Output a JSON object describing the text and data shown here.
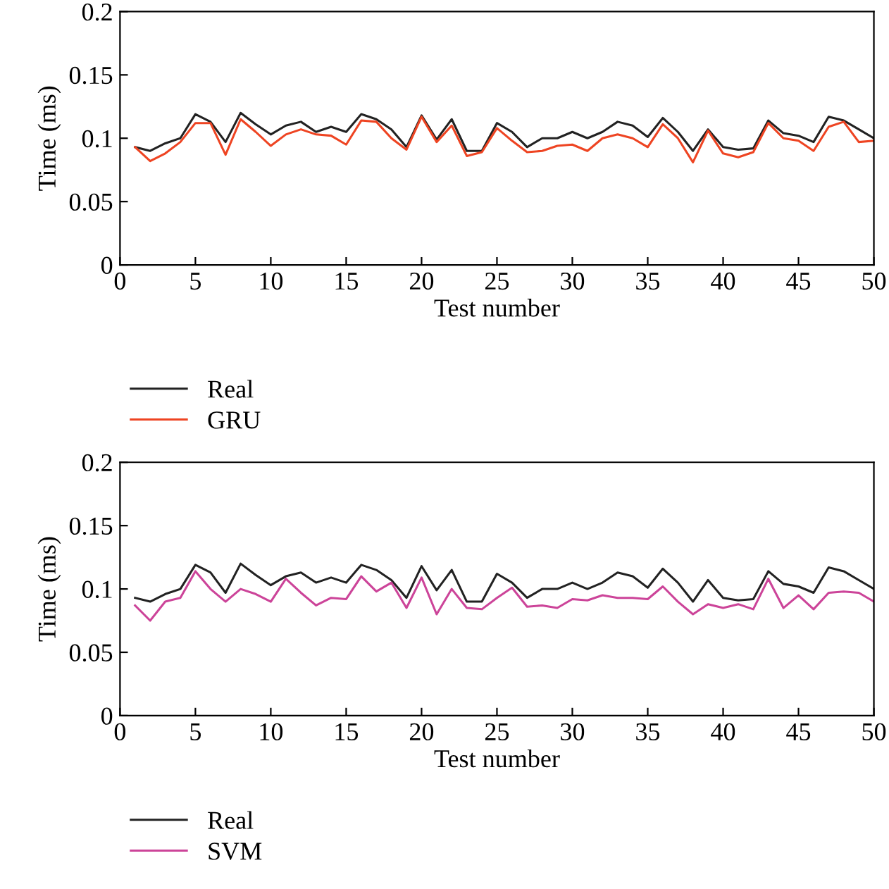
{
  "chart_data": [
    {
      "type": "line",
      "xlabel": "Test number",
      "ylabel": "Time (ms)",
      "xlim": [
        0,
        50
      ],
      "xticks": [
        0,
        5,
        10,
        15,
        20,
        25,
        30,
        35,
        40,
        45,
        50
      ],
      "ylim": [
        0,
        0.2
      ],
      "yticks": [
        0,
        0.05,
        0.1,
        0.15,
        0.2
      ],
      "grid": false,
      "legend": "bottom left",
      "marker": "none",
      "line_style": "solid",
      "x": [
        1,
        2,
        3,
        4,
        5,
        6,
        7,
        8,
        9,
        10,
        11,
        12,
        13,
        14,
        15,
        16,
        17,
        18,
        19,
        20,
        21,
        22,
        23,
        24,
        25,
        26,
        27,
        28,
        29,
        30,
        31,
        32,
        33,
        34,
        35,
        36,
        37,
        38,
        39,
        40,
        41,
        42,
        43,
        44,
        45,
        46,
        47,
        48,
        49,
        50
      ],
      "series": [
        {
          "name": "Real",
          "color": "#222222",
          "values": [
            0.093,
            0.09,
            0.096,
            0.1,
            0.119,
            0.113,
            0.097,
            0.12,
            0.111,
            0.103,
            0.11,
            0.113,
            0.105,
            0.109,
            0.105,
            0.119,
            0.115,
            0.107,
            0.093,
            0.118,
            0.099,
            0.115,
            0.09,
            0.09,
            0.112,
            0.105,
            0.093,
            0.1,
            0.1,
            0.105,
            0.1,
            0.105,
            0.113,
            0.11,
            0.101,
            0.116,
            0.105,
            0.09,
            0.107,
            0.093,
            0.091,
            0.092,
            0.114,
            0.104,
            0.102,
            0.097,
            0.117,
            0.114,
            0.107,
            0.1
          ]
        },
        {
          "name": "GRU",
          "color": "#ee4422",
          "values": [
            0.093,
            0.082,
            0.088,
            0.097,
            0.112,
            0.112,
            0.087,
            0.115,
            0.105,
            0.094,
            0.103,
            0.107,
            0.103,
            0.102,
            0.095,
            0.114,
            0.113,
            0.1,
            0.091,
            0.117,
            0.097,
            0.11,
            0.086,
            0.089,
            0.108,
            0.098,
            0.089,
            0.09,
            0.094,
            0.095,
            0.09,
            0.1,
            0.103,
            0.1,
            0.093,
            0.111,
            0.1,
            0.081,
            0.106,
            0.088,
            0.085,
            0.089,
            0.112,
            0.1,
            0.098,
            0.09,
            0.109,
            0.113,
            0.097,
            0.098
          ]
        }
      ]
    },
    {
      "type": "line",
      "xlabel": "Test number",
      "ylabel": "Time (ms)",
      "xlim": [
        0,
        50
      ],
      "xticks": [
        0,
        5,
        10,
        15,
        20,
        25,
        30,
        35,
        40,
        45,
        50
      ],
      "ylim": [
        0,
        0.2
      ],
      "yticks": [
        0,
        0.05,
        0.1,
        0.15,
        0.2
      ],
      "grid": false,
      "legend": "bottom left",
      "marker": "none",
      "line_style": "solid",
      "x": [
        1,
        2,
        3,
        4,
        5,
        6,
        7,
        8,
        9,
        10,
        11,
        12,
        13,
        14,
        15,
        16,
        17,
        18,
        19,
        20,
        21,
        22,
        23,
        24,
        25,
        26,
        27,
        28,
        29,
        30,
        31,
        32,
        33,
        34,
        35,
        36,
        37,
        38,
        39,
        40,
        41,
        42,
        43,
        44,
        45,
        46,
        47,
        48,
        49,
        50
      ],
      "series": [
        {
          "name": "Real",
          "color": "#222222",
          "values": [
            0.093,
            0.09,
            0.096,
            0.1,
            0.119,
            0.113,
            0.097,
            0.12,
            0.111,
            0.103,
            0.11,
            0.113,
            0.105,
            0.109,
            0.105,
            0.119,
            0.115,
            0.107,
            0.093,
            0.118,
            0.099,
            0.115,
            0.09,
            0.09,
            0.112,
            0.105,
            0.093,
            0.1,
            0.1,
            0.105,
            0.1,
            0.105,
            0.113,
            0.11,
            0.101,
            0.116,
            0.105,
            0.09,
            0.107,
            0.093,
            0.091,
            0.092,
            0.114,
            0.104,
            0.102,
            0.097,
            0.117,
            0.114,
            0.107,
            0.1
          ]
        },
        {
          "name": "SVM",
          "color": "#cc4499",
          "values": [
            0.087,
            0.075,
            0.09,
            0.093,
            0.114,
            0.1,
            0.09,
            0.1,
            0.096,
            0.09,
            0.108,
            0.097,
            0.087,
            0.093,
            0.092,
            0.11,
            0.098,
            0.105,
            0.085,
            0.109,
            0.08,
            0.1,
            0.085,
            0.084,
            0.093,
            0.101,
            0.086,
            0.087,
            0.085,
            0.092,
            0.091,
            0.095,
            0.093,
            0.093,
            0.092,
            0.102,
            0.09,
            0.08,
            0.088,
            0.085,
            0.088,
            0.084,
            0.108,
            0.085,
            0.095,
            0.084,
            0.097,
            0.098,
            0.097,
            0.09
          ]
        }
      ]
    }
  ]
}
